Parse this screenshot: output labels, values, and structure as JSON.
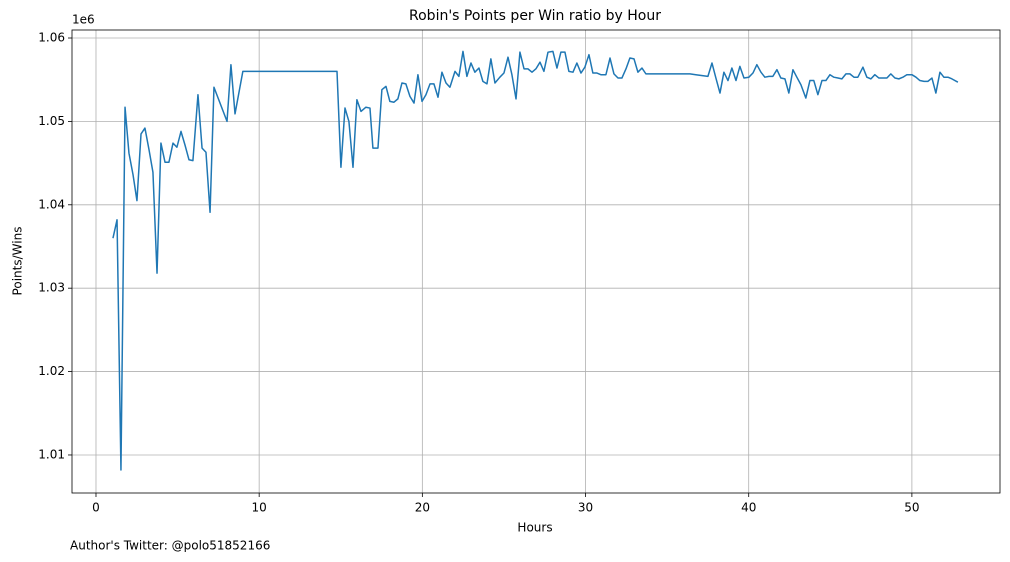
{
  "chart_data": {
    "type": "line",
    "title": "Robin's Points per Win ratio by Hour",
    "x_label": "Hours",
    "y_label": "Points/Wins",
    "y_offset_label": "1e6",
    "footnote": "Author's Twitter: @polo51852166",
    "color": "#1f77b4",
    "grid": true,
    "xlim": [
      -1.47,
      55.4
    ],
    "ylim": [
      1.00544,
      1.06096
    ],
    "xticks": [
      0,
      10,
      20,
      30,
      40,
      50
    ],
    "yticks": [
      1.01,
      1.02,
      1.03,
      1.04,
      1.05,
      1.06
    ],
    "x": [
      1.04,
      1.29,
      1.53,
      1.78,
      2.02,
      2.27,
      2.51,
      2.76,
      3.0,
      3.25,
      3.49,
      3.74,
      3.98,
      4.23,
      4.47,
      4.72,
      4.96,
      5.21,
      5.45,
      5.7,
      5.94,
      6.25,
      6.5,
      6.74,
      6.99,
      7.23,
      8.03,
      8.27,
      8.52,
      9.0,
      14.77,
      15.01,
      15.26,
      15.5,
      15.75,
      15.99,
      16.24,
      16.54,
      16.79,
      16.97,
      17.28,
      17.52,
      17.77,
      18.01,
      18.26,
      18.5,
      18.75,
      18.99,
      19.24,
      19.49,
      19.73,
      19.98,
      20.22,
      20.47,
      20.71,
      20.96,
      21.2,
      21.45,
      21.69,
      22.0,
      22.24,
      22.49,
      22.73,
      22.98,
      23.22,
      23.47,
      23.71,
      23.96,
      24.2,
      24.45,
      24.75,
      25.0,
      25.25,
      25.49,
      25.74,
      25.98,
      26.23,
      26.47,
      26.72,
      26.96,
      27.21,
      27.45,
      27.7,
      28.0,
      28.25,
      28.49,
      28.74,
      28.98,
      29.23,
      29.47,
      29.72,
      29.96,
      30.21,
      30.45,
      30.7,
      30.94,
      31.25,
      31.5,
      31.74,
      31.99,
      32.23,
      32.48,
      32.72,
      32.97,
      33.21,
      33.46,
      33.7,
      36.4,
      36.76,
      37.5,
      37.75,
      37.99,
      38.24,
      38.48,
      38.73,
      38.97,
      39.22,
      39.46,
      39.71,
      40.01,
      40.26,
      40.5,
      40.75,
      40.99,
      41.24,
      41.48,
      41.73,
      41.97,
      42.22,
      42.46,
      42.71,
      42.95,
      43.2,
      43.5,
      43.75,
      43.99,
      44.24,
      44.49,
      44.73,
      44.98,
      45.22,
      45.47,
      45.71,
      45.96,
      46.2,
      46.45,
      46.69,
      47.0,
      47.24,
      47.49,
      47.73,
      47.98,
      48.22,
      48.47,
      48.71,
      48.96,
      49.2,
      49.45,
      49.69,
      50.0,
      50.25,
      50.49,
      50.74,
      50.98,
      51.23,
      51.47,
      51.72,
      51.96,
      52.21,
      52.45,
      52.82
    ],
    "values": [
      1.036,
      1.0382,
      1.0082,
      1.0517,
      1.0462,
      1.0436,
      1.0405,
      1.0485,
      1.0492,
      1.0466,
      1.0439,
      1.0318,
      1.0474,
      1.0451,
      1.0451,
      1.0474,
      1.0469,
      1.0488,
      1.0472,
      1.0454,
      1.0453,
      1.0532,
      1.0468,
      1.0463,
      1.0391,
      1.0541,
      1.05,
      1.0568,
      1.0509,
      1.056,
      1.056,
      1.0445,
      1.0516,
      1.05,
      1.0445,
      1.0526,
      1.0512,
      1.0517,
      1.0516,
      1.0468,
      1.0468,
      1.0538,
      1.0542,
      1.0524,
      1.0523,
      1.0527,
      1.0546,
      1.0545,
      1.053,
      1.0522,
      1.0556,
      1.0524,
      1.0532,
      1.0545,
      1.0545,
      1.0529,
      1.0559,
      1.0546,
      1.0541,
      1.056,
      1.0554,
      1.0584,
      1.0554,
      1.057,
      1.0559,
      1.0564,
      1.0548,
      1.0545,
      1.0575,
      1.0546,
      1.0553,
      1.0558,
      1.0577,
      1.0556,
      1.0527,
      1.0583,
      1.0563,
      1.0563,
      1.0559,
      1.0563,
      1.0571,
      1.056,
      1.0583,
      1.0584,
      1.0564,
      1.0583,
      1.0583,
      1.056,
      1.0559,
      1.057,
      1.0558,
      1.0565,
      1.058,
      1.0558,
      1.0558,
      1.0556,
      1.0556,
      1.0576,
      1.0557,
      1.0552,
      1.0552,
      1.0563,
      1.0576,
      1.0575,
      1.0559,
      1.0564,
      1.0557,
      1.0557,
      1.0556,
      1.0554,
      1.057,
      1.0552,
      1.0534,
      1.0559,
      1.0549,
      1.0564,
      1.0549,
      1.0566,
      1.0552,
      1.0553,
      1.0558,
      1.0568,
      1.0559,
      1.0553,
      1.0554,
      1.0554,
      1.0562,
      1.0552,
      1.0551,
      1.0534,
      1.0562,
      1.0553,
      1.0544,
      1.0528,
      1.0549,
      1.0549,
      1.0532,
      1.0549,
      1.0549,
      1.0556,
      1.0553,
      1.0552,
      1.0551,
      1.0557,
      1.0557,
      1.0553,
      1.0553,
      1.0565,
      1.0553,
      1.0551,
      1.0556,
      1.0552,
      1.0552,
      1.0552,
      1.0557,
      1.0552,
      1.0551,
      1.0553,
      1.0556,
      1.0556,
      1.0553,
      1.0549,
      1.0548,
      1.0548,
      1.0552,
      1.0534,
      1.0559,
      1.0553,
      1.0553,
      1.0551,
      1.0547
    ]
  }
}
